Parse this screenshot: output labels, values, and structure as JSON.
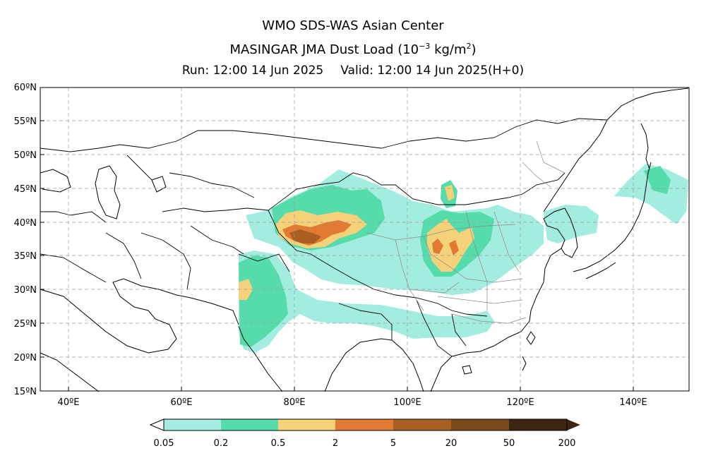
{
  "title": {
    "line1": "WMO SDS-WAS Asian Center",
    "line2_main": "MASINGAR JMA Dust Load (10",
    "line2_exp": "−3",
    "line2_unit": " kg/m",
    "line2_sq": "2",
    "line2_close": ")",
    "run": "Run: 12:00 14 Jun 2025",
    "valid": "Valid: 12:00 14 Jun 2025(H+0)"
  },
  "map": {
    "lat_labels": [
      "60ºN",
      "55ºN",
      "50ºN",
      "45ºN",
      "40ºN",
      "35ºN",
      "30ºN",
      "25ºN",
      "20ºN",
      "15ºN"
    ],
    "lon_labels": [
      "40ºE",
      "60ºE",
      "80ºE",
      "100ºE",
      "120ºE",
      "140ºE"
    ],
    "lon_range": [
      35,
      150
    ],
    "lat_range": [
      15,
      60
    ],
    "gridlines": true
  },
  "colorbar": {
    "ticks": [
      "0.05",
      "0.2",
      "0.5",
      "2",
      "5",
      "20",
      "50",
      "200"
    ],
    "colors": [
      "#a3ece0",
      "#55dcaa",
      "#f5d27a",
      "#e27a33",
      "#a95f22",
      "#7a4a1d",
      "#3d2512"
    ]
  }
}
